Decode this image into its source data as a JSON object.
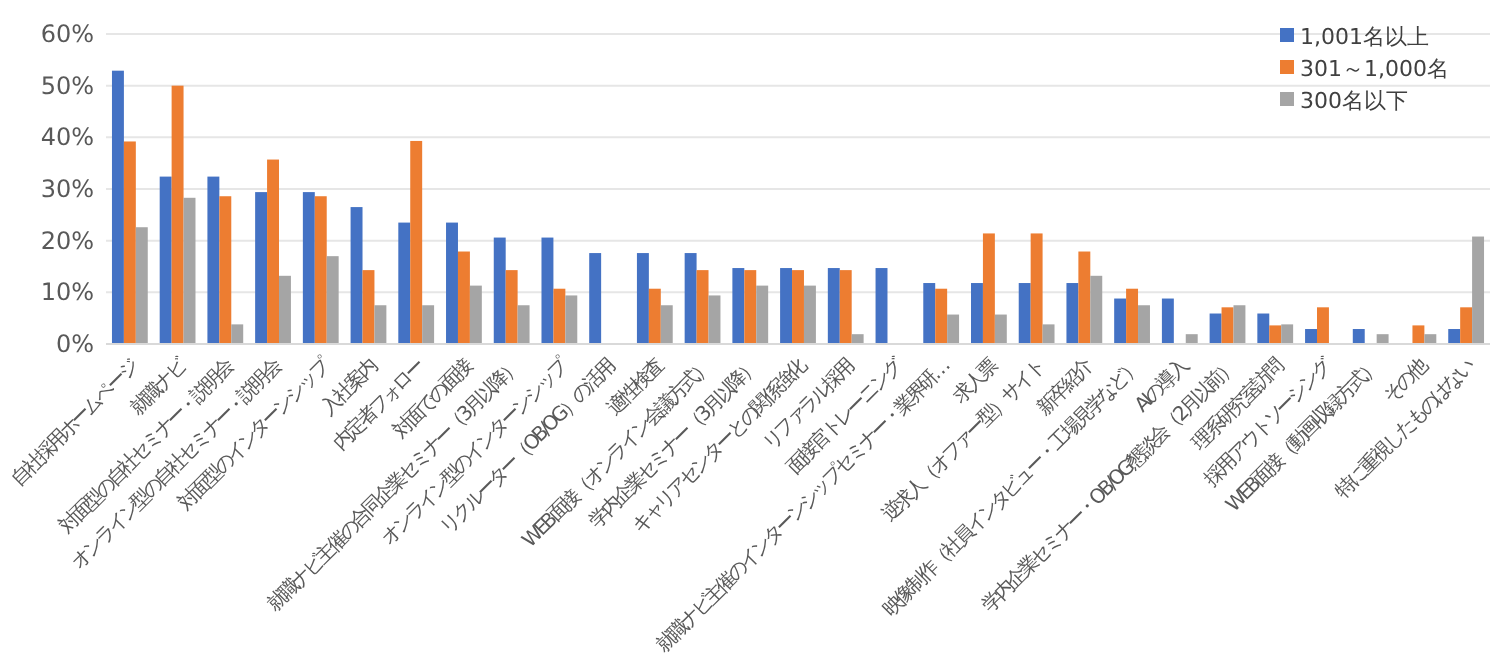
{
  "chart_data": {
    "type": "bar",
    "categories": [
      "自社採用ホームページ",
      "就職ナビ",
      "対面型の自社セミナー・説明会",
      "オンライン型の自社セミナー・説明会",
      "対面型のインターンシップ",
      "入社案内",
      "内定者フォロー",
      "対面での面接",
      "就職ナビ主催の合同企業セミナー（3月以降）",
      "オンライン型のインターンシップ",
      "リクルーター（OB/OG）の活用",
      "適性検査",
      "WEB面接（オンライン会議方式）",
      "学内企業セミナー（3月以降）",
      "キャリアセンターとの関係強化",
      "リファラル採用",
      "面接官トレーニング",
      "就職ナビ主催のインターンシップセミナー・業界研…",
      "求人票",
      "逆求人（オファー型）サイト",
      "新卒紹介",
      "映像制作（社員インタビュー・工場見学など）",
      "AIの導入",
      "学内企業セミナー・OB/OG懇談会（2月以前）",
      "理系研究室訪問",
      "採用アウトソーシング",
      "WEB面接（動画収録方式）",
      "その他",
      "特に重視したものはない"
    ],
    "series": [
      {
        "name": "1,001名以上",
        "color": "#4472c4",
        "values": [
          52.9,
          32.4,
          32.4,
          29.4,
          29.4,
          26.5,
          23.5,
          23.5,
          20.6,
          20.6,
          17.6,
          17.6,
          17.6,
          14.7,
          14.7,
          14.7,
          14.7,
          11.8,
          11.8,
          11.8,
          11.8,
          8.8,
          8.8,
          5.9,
          5.9,
          2.9,
          2.9,
          0,
          2.9
        ]
      },
      {
        "name": "301～1,000名",
        "color": "#ed7d31",
        "values": [
          39.2,
          50,
          28.6,
          35.7,
          28.6,
          14.3,
          39.3,
          17.9,
          14.3,
          10.7,
          0,
          10.7,
          14.3,
          14.3,
          14.3,
          14.3,
          0,
          10.7,
          21.4,
          21.4,
          17.9,
          10.7,
          0,
          7.1,
          3.6,
          7.1,
          0,
          3.6,
          7.1
        ]
      },
      {
        "name": "300名以下",
        "color": "#a5a5a5",
        "values": [
          22.6,
          28.3,
          3.8,
          13.2,
          17,
          7.5,
          7.5,
          11.3,
          7.5,
          9.4,
          0,
          7.5,
          9.4,
          11.3,
          11.3,
          1.9,
          0,
          5.7,
          5.7,
          3.8,
          13.2,
          7.5,
          1.9,
          7.5,
          3.8,
          0,
          1.9,
          1.9,
          20.8
        ]
      }
    ],
    "ylim": [
      0,
      60
    ],
    "yticks": [
      {
        "value": 0,
        "label": "0%"
      },
      {
        "value": 10,
        "label": "10%"
      },
      {
        "value": 20,
        "label": "20%"
      },
      {
        "value": 30,
        "label": "30%"
      },
      {
        "value": 40,
        "label": "40%"
      },
      {
        "value": 50,
        "label": "50%"
      },
      {
        "value": 60,
        "label": "60%"
      }
    ],
    "grid": "y",
    "legend": "top right"
  }
}
